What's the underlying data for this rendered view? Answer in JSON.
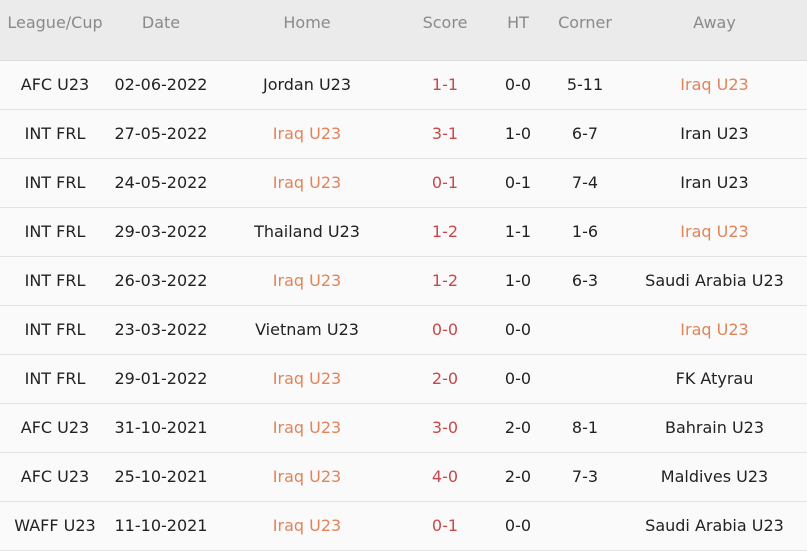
{
  "colors": {
    "highlight_team": "#e0845a",
    "score": "#c9474a",
    "header_bg": "#ebebeb"
  },
  "headers": [
    "League/Cup",
    "Date",
    "Home",
    "Score",
    "HT",
    "Corner",
    "Away"
  ],
  "rows": [
    {
      "league": "AFC U23",
      "date": "02-06-2022",
      "home": "Jordan U23",
      "score": "1-1",
      "ht": "0-0",
      "corner": "5-11",
      "away": "Iraq U23",
      "hl": "away"
    },
    {
      "league": "INT FRL",
      "date": "27-05-2022",
      "home": "Iraq U23",
      "score": "3-1",
      "ht": "1-0",
      "corner": "6-7",
      "away": "Iran U23",
      "hl": "home"
    },
    {
      "league": "INT FRL",
      "date": "24-05-2022",
      "home": "Iraq U23",
      "score": "0-1",
      "ht": "0-1",
      "corner": "7-4",
      "away": "Iran U23",
      "hl": "home"
    },
    {
      "league": "INT FRL",
      "date": "29-03-2022",
      "home": "Thailand U23",
      "score": "1-2",
      "ht": "1-1",
      "corner": "1-6",
      "away": "Iraq U23",
      "hl": "away"
    },
    {
      "league": "INT FRL",
      "date": "26-03-2022",
      "home": "Iraq U23",
      "score": "1-2",
      "ht": "1-0",
      "corner": "6-3",
      "away": "Saudi Arabia U23",
      "hl": "home"
    },
    {
      "league": "INT FRL",
      "date": "23-03-2022",
      "home": "Vietnam U23",
      "score": "0-0",
      "ht": "0-0",
      "corner": "",
      "away": "Iraq U23",
      "hl": "away"
    },
    {
      "league": "INT FRL",
      "date": "29-01-2022",
      "home": "Iraq U23",
      "score": "2-0",
      "ht": "0-0",
      "corner": "",
      "away": "FK Atyrau",
      "hl": "home"
    },
    {
      "league": "AFC U23",
      "date": "31-10-2021",
      "home": "Iraq U23",
      "score": "3-0",
      "ht": "2-0",
      "corner": "8-1",
      "away": "Bahrain U23",
      "hl": "home"
    },
    {
      "league": "AFC U23",
      "date": "25-10-2021",
      "home": "Iraq U23",
      "score": "4-0",
      "ht": "2-0",
      "corner": "7-3",
      "away": "Maldives U23",
      "hl": "home"
    },
    {
      "league": "WAFF U23",
      "date": "11-10-2021",
      "home": "Iraq U23",
      "score": "0-1",
      "ht": "0-0",
      "corner": "",
      "away": "Saudi Arabia U23",
      "hl": "home"
    }
  ]
}
